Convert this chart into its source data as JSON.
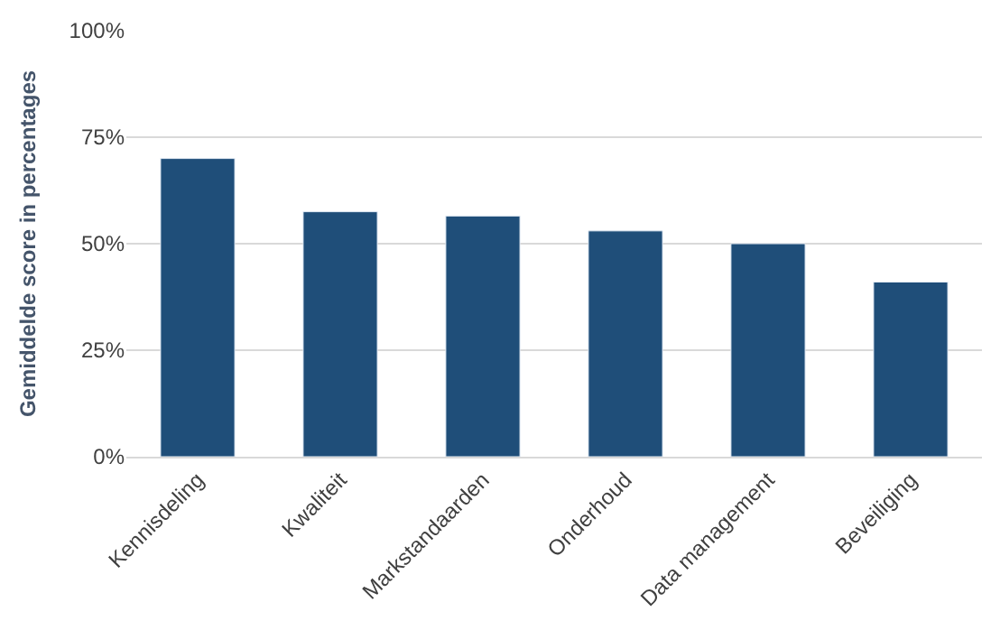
{
  "chart_data": {
    "type": "bar",
    "ylabel": "Gemiddelde score in percentages",
    "categories": [
      "Kennisdeling",
      "Kwaliteit",
      "Markstandaarden",
      "Onderhoud",
      "Data management",
      "Beveiliging"
    ],
    "values": [
      70,
      57.5,
      56.5,
      53,
      50,
      41
    ],
    "color": "#1f4e79",
    "ylim": [
      0,
      100
    ],
    "yticks": [
      {
        "value": 0,
        "label": "0%"
      },
      {
        "value": 25,
        "label": "25%"
      },
      {
        "value": 50,
        "label": "50%"
      },
      {
        "value": 75,
        "label": "75%"
      },
      {
        "value": 100,
        "label": "100%"
      }
    ],
    "grid": "y"
  }
}
